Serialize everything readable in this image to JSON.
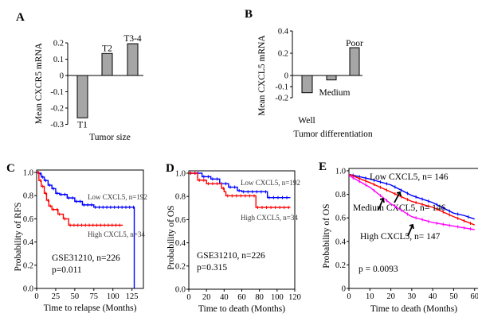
{
  "chart_data": [
    {
      "panel": "A",
      "type": "bar",
      "categories": [
        "T1",
        "T2",
        "T3-4"
      ],
      "values": [
        -0.26,
        0.135,
        0.195
      ],
      "xlabel": "Tumor size",
      "ylabel": "Mean CXCR5 mRNA",
      "ylim": [
        -0.3,
        0.2
      ],
      "yticks": [
        "0.2",
        "0.1",
        "0",
        "-0.1",
        "-0.2",
        "-0.3"
      ],
      "bar_color": "#a6a6a6",
      "grid": false
    },
    {
      "panel": "B",
      "type": "bar",
      "categories": [
        "Well",
        "Medium",
        "Poor"
      ],
      "values": [
        -0.155,
        -0.04,
        0.25
      ],
      "xlabel": "Tumor differentiation",
      "ylabel": "Mean CXCL5 mRNA",
      "ylim": [
        -0.2,
        0.4
      ],
      "yticks": [
        "0.4",
        "0.2",
        "0",
        "-0.1",
        "-0.2"
      ],
      "bar_color": "#a6a6a6",
      "grid": false
    },
    {
      "panel": "C",
      "type": "line",
      "xlabel": "Time to relapse (Months)",
      "ylabel": "Probability of RFS",
      "xlim": [
        0,
        140
      ],
      "ylim": [
        0,
        1
      ],
      "xticks": [
        "0",
        "25",
        "50",
        "75",
        "100",
        "125"
      ],
      "yticks": [
        "0.0",
        "0.2",
        "0.4",
        "0.6",
        "0.8",
        "1.0"
      ],
      "annotation": [
        "GSE31210,  n=226",
        "p=0.011"
      ],
      "series": [
        {
          "name": "Low CXCL5, n=192",
          "color": "#0000ff",
          "points": [
            [
              0,
              1
            ],
            [
              3,
              0.99
            ],
            [
              6,
              0.96
            ],
            [
              10,
              0.93
            ],
            [
              15,
              0.89
            ],
            [
              20,
              0.86
            ],
            [
              25,
              0.82
            ],
            [
              30,
              0.81
            ],
            [
              40,
              0.78
            ],
            [
              50,
              0.75
            ],
            [
              60,
              0.72
            ],
            [
              75,
              0.7
            ],
            [
              128,
              0.7
            ],
            [
              128,
              0
            ]
          ]
        },
        {
          "name": "High CXCL5, n=34",
          "color": "#ff0000",
          "points": [
            [
              0,
              1
            ],
            [
              3,
              0.93
            ],
            [
              6,
              0.88
            ],
            [
              10,
              0.82
            ],
            [
              13,
              0.76
            ],
            [
              16,
              0.71
            ],
            [
              20,
              0.68
            ],
            [
              28,
              0.64
            ],
            [
              35,
              0.6
            ],
            [
              42,
              0.545
            ],
            [
              113,
              0.545
            ]
          ]
        }
      ]
    },
    {
      "panel": "D",
      "type": "line",
      "xlabel": "Time to death (Months)",
      "ylabel": "Probability of OS",
      "xlim": [
        0,
        120
      ],
      "ylim": [
        0,
        1
      ],
      "xticks": [
        "0",
        "20",
        "40",
        "60",
        "80",
        "100",
        "120"
      ],
      "yticks": [
        "0.0",
        "0.2",
        "0.4",
        "0.6",
        "0.8",
        "1.0"
      ],
      "annotation": [
        "GSE31210,  n=226",
        "p=0.315"
      ],
      "series": [
        {
          "name": "Low CXCL5, n=192",
          "color": "#0000ff",
          "points": [
            [
              0,
              1
            ],
            [
              8,
              1
            ],
            [
              15,
              0.97
            ],
            [
              25,
              0.95
            ],
            [
              35,
              0.91
            ],
            [
              45,
              0.88
            ],
            [
              55,
              0.85
            ],
            [
              60,
              0.84
            ],
            [
              88,
              0.84
            ],
            [
              89,
              0.79
            ],
            [
              115,
              0.79
            ]
          ]
        },
        {
          "name": "High CXCL5, n=34",
          "color": "#ff0000",
          "points": [
            [
              0,
              1
            ],
            [
              8,
              1
            ],
            [
              10,
              0.94
            ],
            [
              20,
              0.91
            ],
            [
              35,
              0.91
            ],
            [
              37,
              0.87
            ],
            [
              40,
              0.84
            ],
            [
              42,
              0.805
            ],
            [
              75,
              0.805
            ],
            [
              76,
              0.705
            ],
            [
              115,
              0.705
            ]
          ]
        }
      ]
    },
    {
      "panel": "E",
      "type": "line",
      "xlabel": "Time to death (Months)",
      "ylabel": "Probability of OS",
      "xlim": [
        0,
        62
      ],
      "ylim": [
        0,
        1
      ],
      "xticks": [
        "0",
        "10",
        "20",
        "30",
        "40",
        "50",
        "60"
      ],
      "yticks": [
        "0",
        "0.2",
        "0.4",
        "0.6",
        "0.8",
        "1.0"
      ],
      "annotation": [
        "p = 0.0093"
      ],
      "series": [
        {
          "name": "Low CXCL5, n= 146",
          "color": "#0000ff",
          "points": [
            [
              0,
              0.97
            ],
            [
              10,
              0.93
            ],
            [
              20,
              0.88
            ],
            [
              30,
              0.79
            ],
            [
              40,
              0.73
            ],
            [
              50,
              0.64
            ],
            [
              55,
              0.62
            ],
            [
              60,
              0.59
            ]
          ]
        },
        {
          "name": "Medium  CXCL5, n= 146",
          "color": "#ff0000",
          "points": [
            [
              0,
              0.97
            ],
            [
              10,
              0.9
            ],
            [
              20,
              0.82
            ],
            [
              30,
              0.74
            ],
            [
              40,
              0.69
            ],
            [
              50,
              0.61
            ],
            [
              60,
              0.54
            ]
          ]
        },
        {
          "name": "High CXCL5, n= 147",
          "color": "#ff00ff",
          "points": [
            [
              0,
              0.96
            ],
            [
              10,
              0.86
            ],
            [
              20,
              0.72
            ],
            [
              30,
              0.61
            ],
            [
              40,
              0.56
            ],
            [
              50,
              0.53
            ],
            [
              60,
              0.5
            ]
          ]
        }
      ]
    }
  ]
}
